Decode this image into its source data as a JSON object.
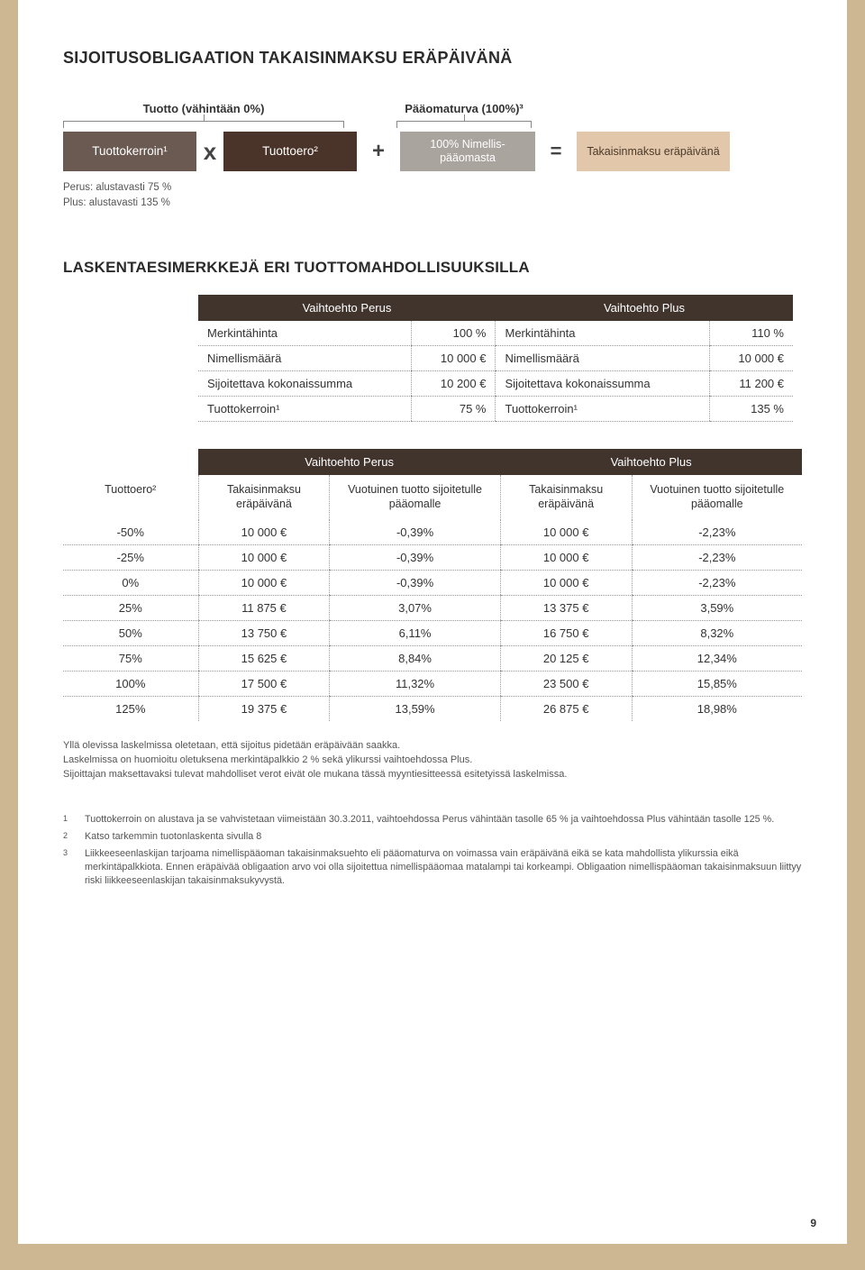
{
  "title": "SIJOITUSOBLIGAATION TAKAISINMAKSU ERÄPÄIVÄNÄ",
  "formula": {
    "top_label_tuotto": "Tuotto (vähintään 0%)",
    "top_label_paaoma": "Pääomaturva (100%)³",
    "box_kerroin": "Tuottokerroin¹",
    "box_ero": "Tuottoero²",
    "box_nimellis": "100% Nimellis-pääomasta",
    "box_takaisin": "Takaisinmaksu eräpäivänä",
    "op_x": "x",
    "op_plus": "+",
    "op_eq": "=",
    "note_perus": "Perus: alustavasti 75 %",
    "note_plus": "Plus: alustavasti 135 %"
  },
  "sub_title": "LASKENTAESIMERKKEJÄ ERI TUOTTOMAHDOLLISUUKSILLA",
  "table1": {
    "head_perus": "Vaihtoehto Perus",
    "head_plus": "Vaihtoehto Plus",
    "rows": [
      {
        "l1": "Merkintähinta",
        "v1": "100 %",
        "l2": "Merkintähinta",
        "v2": "110 %"
      },
      {
        "l1": "Nimellismäärä",
        "v1": "10 000 €",
        "l2": "Nimellismäärä",
        "v2": "10 000 €"
      },
      {
        "l1": "Sijoitettava kokonaissumma",
        "v1": "10 200 €",
        "l2": "Sijoitettava kokonaissumma",
        "v2": "11 200 €"
      },
      {
        "l1": "Tuottokerroin¹",
        "v1": "75 %",
        "l2": "Tuottokerroin¹",
        "v2": "135 %"
      }
    ]
  },
  "table2": {
    "head_perus": "Vaihtoehto Perus",
    "head_plus": "Vaihtoehto Plus",
    "sub_tuottoero": "Tuottoero²",
    "sub_takaisin": "Takaisinmaksu eräpäivänä",
    "sub_vuotuinen": "Vuotuinen tuotto sijoitetulle pääomalle",
    "rows": [
      {
        "c0": "-50%",
        "c1": "10 000 €",
        "c2": "-0,39%",
        "c3": "10 000 €",
        "c4": "-2,23%"
      },
      {
        "c0": "-25%",
        "c1": "10 000 €",
        "c2": "-0,39%",
        "c3": "10 000 €",
        "c4": "-2,23%"
      },
      {
        "c0": "0%",
        "c1": "10 000 €",
        "c2": "-0,39%",
        "c3": "10 000 €",
        "c4": "-2,23%"
      },
      {
        "c0": "25%",
        "c1": "11 875 €",
        "c2": "3,07%",
        "c3": "13 375 €",
        "c4": "3,59%"
      },
      {
        "c0": "50%",
        "c1": "13 750 €",
        "c2": "6,11%",
        "c3": "16 750 €",
        "c4": "8,32%"
      },
      {
        "c0": "75%",
        "c1": "15 625 €",
        "c2": "8,84%",
        "c3": "20 125 €",
        "c4": "12,34%"
      },
      {
        "c0": "100%",
        "c1": "17 500 €",
        "c2": "11,32%",
        "c3": "23 500 €",
        "c4": "15,85%"
      },
      {
        "c0": "125%",
        "c1": "19 375 €",
        "c2": "13,59%",
        "c3": "26 875 €",
        "c4": "18,98%"
      }
    ]
  },
  "notes": {
    "n1": "Yllä olevissa laskelmissa oletetaan, että sijoitus pidetään eräpäivään saakka.",
    "n2": "Laskelmissa on huomioitu oletuksena merkintäpalkkio 2 % sekä ylikurssi vaihtoehdossa Plus.",
    "n3": "Sijoittajan maksettavaksi tulevat mahdolliset verot eivät ole mukana tässä myyntiesitteessä esitetyissä laskelmissa."
  },
  "footnotes": {
    "f1_num": "1",
    "f1": "Tuottokerroin on alustava ja se vahvistetaan viimeistään 30.3.2011, vaihtoehdossa Perus vähintään tasolle 65 % ja vaihtoehdossa Plus vähintään tasolle 125 %.",
    "f2_num": "2",
    "f2": "Katso tarkemmin tuotonlaskenta sivulla 8",
    "f3_num": "3",
    "f3": "Liikkeeseenlaskijan tarjoama nimellispääoman takaisinmaksuehto eli pääomaturva on voimassa vain eräpäivänä eikä se kata mahdollista ylikurssia eikä merkintäpalkkiota. Ennen eräpäivää obligaation arvo voi olla sijoitettua nimellispääomaa matalampi tai korkeampi. Obligaation nimellispääoman takaisinmaksuun liittyy riski liikkeeseenlaskijan takaisinmaksukyvystä."
  },
  "page_number": "9",
  "colors": {
    "page_bg": "#cdb793",
    "content_bg": "#ffffff",
    "table_head_bg": "#41342d",
    "box_kerroin": "#6a5a52",
    "box_ero": "#4a3328",
    "box_nimellis": "#a9a49e",
    "box_takaisin": "#e2c7aa"
  }
}
